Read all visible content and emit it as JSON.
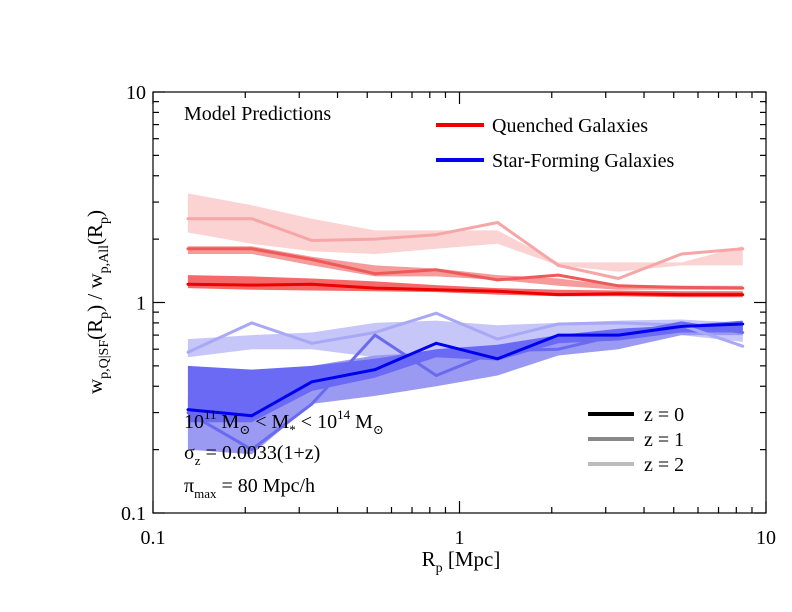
{
  "chart_data": {
    "type": "line",
    "title": "",
    "xlabel": "R_p [Mpc]",
    "ylabel": "w_p,Q|SF(R_p) / w_p,All(R_p)",
    "xscale": "log",
    "yscale": "log",
    "xlim": [
      0.1,
      10
    ],
    "ylim": [
      0.1,
      10
    ],
    "xticks": [
      {
        "v": 0.1,
        "label": "0.1"
      },
      {
        "v": 1,
        "label": "1"
      },
      {
        "v": 10,
        "label": "10"
      }
    ],
    "yticks": [
      {
        "v": 0.1,
        "label": "0.1"
      },
      {
        "v": 1,
        "label": "1"
      },
      {
        "v": 10,
        "label": "10"
      }
    ],
    "annotations": {
      "model": "Model Predictions",
      "mass_range": "10^11 M_⊙ < M_* < 10^14 M_⊙",
      "sigma": "σ_z = 0.0033(1+z)",
      "pimax": "π_max = 80 Mpc/h"
    },
    "legend_type": [
      {
        "label": "Quenched Galaxies",
        "color": "#ee0000"
      },
      {
        "label": "Star-Forming Galaxies",
        "color": "#0000ee"
      }
    ],
    "legend_z": [
      {
        "label": "z = 0",
        "color": "#000000"
      },
      {
        "label": "z = 1",
        "color": "#888888"
      },
      {
        "label": "z = 2",
        "color": "#bbbbbb"
      }
    ],
    "x": [
      0.13,
      0.21,
      0.33,
      0.53,
      0.84,
      1.33,
      2.1,
      3.3,
      5.3,
      8.4
    ],
    "series": [
      {
        "name": "Quenched Galaxies, z = 2",
        "color": "#f6a6a6",
        "band_color": "#fcd3d3",
        "values": [
          2.5,
          2.5,
          1.97,
          2.0,
          2.1,
          2.4,
          1.5,
          1.3,
          1.7,
          1.8
        ],
        "band_lo": [
          2.15,
          1.9,
          1.75,
          1.7,
          1.8,
          1.9,
          1.5,
          1.4,
          1.5,
          1.5
        ],
        "band_hi": [
          3.3,
          2.9,
          2.5,
          2.2,
          2.2,
          2.2,
          1.55,
          1.55,
          1.55,
          1.85
        ]
      },
      {
        "name": "Quenched Galaxies, z = 1",
        "color": "#ee5a5a",
        "band_color": "#f69a9a",
        "values": [
          1.8,
          1.8,
          1.6,
          1.37,
          1.43,
          1.28,
          1.35,
          1.2,
          1.18,
          1.17
        ],
        "band_lo": [
          1.7,
          1.7,
          1.5,
          1.33,
          1.33,
          1.28,
          1.2,
          1.15,
          1.15,
          1.15
        ],
        "band_hi": [
          1.85,
          1.85,
          1.65,
          1.5,
          1.45,
          1.35,
          1.3,
          1.2,
          1.2,
          1.2
        ]
      },
      {
        "name": "Quenched Galaxies, z = 0",
        "color": "#ee0000",
        "band_color": "#f46a6a",
        "values": [
          1.22,
          1.21,
          1.22,
          1.17,
          1.15,
          1.13,
          1.09,
          1.1,
          1.09,
          1.09
        ],
        "band_lo": [
          1.17,
          1.15,
          1.14,
          1.13,
          1.12,
          1.09,
          1.07,
          1.07,
          1.06,
          1.06
        ],
        "band_hi": [
          1.35,
          1.33,
          1.3,
          1.26,
          1.21,
          1.17,
          1.15,
          1.14,
          1.13,
          1.13
        ]
      },
      {
        "name": "Star-Forming Galaxies, z = 2",
        "color": "#a8a8f6",
        "band_color": "#c6c6f8",
        "values": [
          0.58,
          0.8,
          0.64,
          0.72,
          0.89,
          0.67,
          0.79,
          0.8,
          0.78,
          0.62
        ],
        "band_lo": [
          0.55,
          0.6,
          0.6,
          0.55,
          0.55,
          0.6,
          0.65,
          0.68,
          0.7,
          0.65
        ],
        "band_hi": [
          0.67,
          0.7,
          0.72,
          0.8,
          0.82,
          0.78,
          0.8,
          0.82,
          0.83,
          0.8
        ]
      },
      {
        "name": "Star-Forming Galaxies, z = 1",
        "color": "#6a6aee",
        "band_color": "#9a9af2",
        "values": [
          0.3,
          0.2,
          0.33,
          0.7,
          0.45,
          0.59,
          0.6,
          0.7,
          0.8,
          0.72
        ],
        "band_lo": [
          0.2,
          0.19,
          0.33,
          0.36,
          0.4,
          0.45,
          0.56,
          0.6,
          0.7,
          0.7
        ],
        "band_hi": [
          0.35,
          0.32,
          0.5,
          0.56,
          0.58,
          0.6,
          0.65,
          0.72,
          0.75,
          0.78
        ]
      },
      {
        "name": "Star-Forming Galaxies, z = 0",
        "color": "#0000ee",
        "band_color": "#6a6af4",
        "values": [
          0.31,
          0.29,
          0.42,
          0.48,
          0.64,
          0.54,
          0.7,
          0.7,
          0.77,
          0.79
        ],
        "band_lo": [
          0.27,
          0.27,
          0.38,
          0.44,
          0.55,
          0.53,
          0.64,
          0.66,
          0.72,
          0.72
        ],
        "band_hi": [
          0.5,
          0.48,
          0.5,
          0.54,
          0.6,
          0.63,
          0.7,
          0.75,
          0.78,
          0.82
        ]
      }
    ]
  }
}
